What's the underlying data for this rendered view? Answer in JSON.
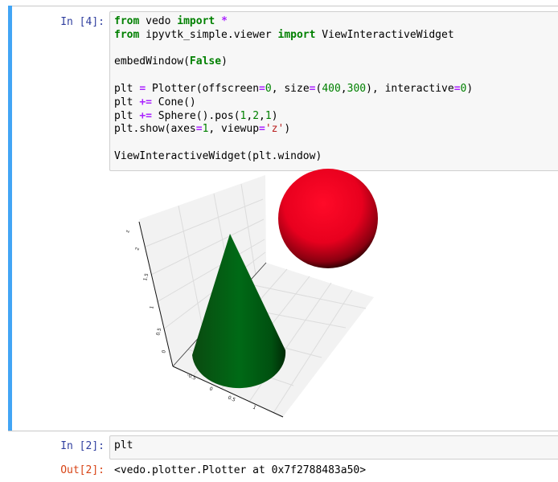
{
  "cells": [
    {
      "prompt": "In [4]:",
      "code_lines": [
        [
          [
            "from",
            "kw"
          ],
          [
            " vedo ",
            ""
          ],
          [
            "import",
            "kw"
          ],
          [
            " ",
            ""
          ],
          [
            "*",
            "op"
          ]
        ],
        [
          [
            "from",
            "kw"
          ],
          [
            " ipyvtk_simple.viewer ",
            ""
          ],
          [
            "import",
            "kw"
          ],
          [
            " ViewInteractiveWidget",
            ""
          ]
        ],
        [],
        [
          [
            "embedWindow(",
            ""
          ],
          [
            "False",
            "kw"
          ],
          [
            ")",
            ""
          ]
        ],
        [],
        [
          [
            "plt ",
            ""
          ],
          [
            "=",
            "op"
          ],
          [
            " Plotter(offscreen",
            ""
          ],
          [
            "=",
            "op"
          ],
          [
            "0",
            "num"
          ],
          [
            ", size",
            ""
          ],
          [
            "=",
            "op"
          ],
          [
            "(",
            ""
          ],
          [
            "400",
            "num"
          ],
          [
            ",",
            ""
          ],
          [
            "300",
            "num"
          ],
          [
            "), interactive",
            ""
          ],
          [
            "=",
            "op"
          ],
          [
            "0",
            "num"
          ],
          [
            ")",
            ""
          ]
        ],
        [
          [
            "plt ",
            ""
          ],
          [
            "+=",
            "op"
          ],
          [
            " Cone()",
            ""
          ]
        ],
        [
          [
            "plt ",
            ""
          ],
          [
            "+=",
            "op"
          ],
          [
            " Sphere().pos(",
            ""
          ],
          [
            "1",
            "num"
          ],
          [
            ",",
            ""
          ],
          [
            "2",
            "num"
          ],
          [
            ",",
            ""
          ],
          [
            "1",
            "num"
          ],
          [
            ")",
            ""
          ]
        ],
        [
          [
            "plt.show(axes",
            ""
          ],
          [
            "=",
            "op"
          ],
          [
            "1",
            "num"
          ],
          [
            ", viewup",
            ""
          ],
          [
            "=",
            "op"
          ],
          [
            "'z'",
            "str"
          ],
          [
            ")",
            ""
          ]
        ],
        [],
        [
          [
            "ViewInteractiveWidget(plt.window)",
            ""
          ]
        ]
      ],
      "output_render": {
        "objects": [
          "cone",
          "sphere"
        ],
        "colors": {
          "cone": "#006414",
          "sphere": "#ff0022",
          "grid_wall": "#f2f2f2"
        },
        "z_ticks": [
          "2",
          "1.5",
          "1",
          "0.5",
          "0"
        ],
        "x_ticks": [
          "-0.5",
          "0",
          "0.5",
          "1"
        ],
        "z_label": "z"
      }
    },
    {
      "prompt": "In [2]:",
      "code_lines": [
        [
          [
            "plt",
            ""
          ]
        ]
      ],
      "out_prompt": "Out[2]:",
      "output_text": "<vedo.plotter.Plotter at 0x7f2788483a50>"
    }
  ],
  "accent_color": "#42a5f5"
}
